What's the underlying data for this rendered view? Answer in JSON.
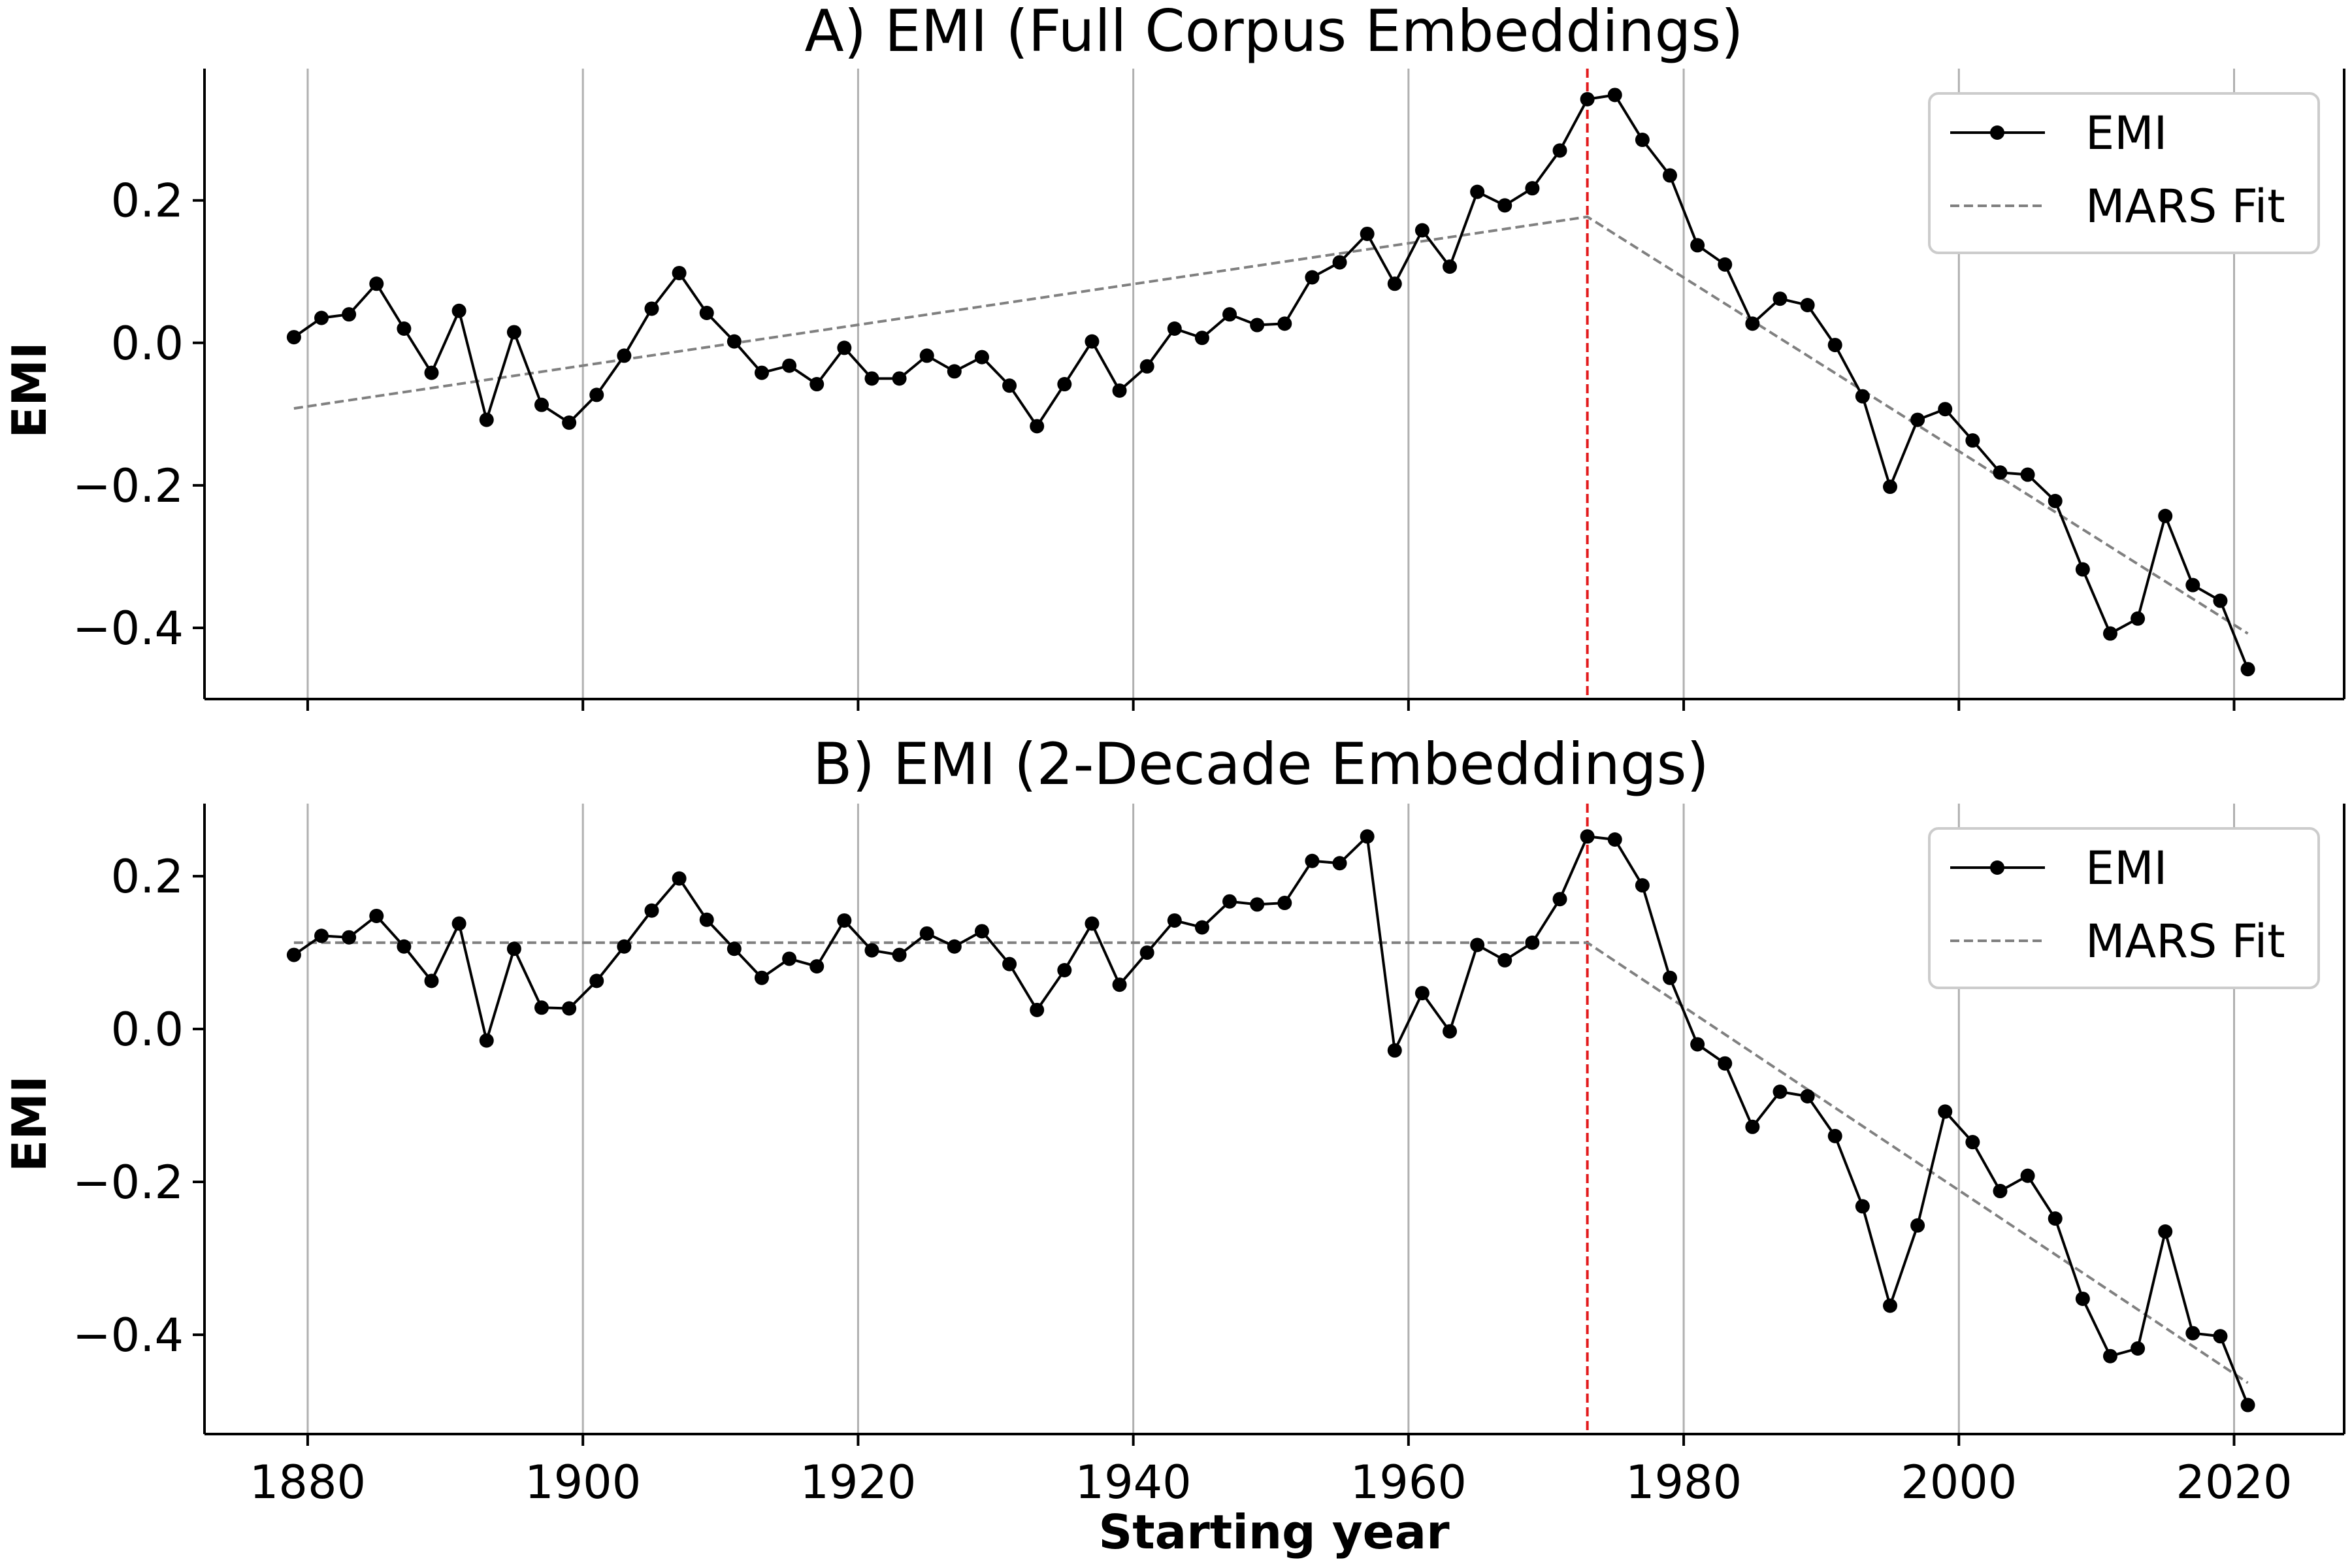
{
  "chart_data": [
    {
      "type": "line",
      "title": "A) EMI (Full Corpus Embeddings)",
      "xlabel": "",
      "ylabel": "EMI",
      "xlim": [
        1872.5,
        2028
      ],
      "ylim": [
        -0.5,
        0.385
      ],
      "xticks": [
        1880,
        1900,
        1920,
        1940,
        1960,
        1980,
        2000,
        2020
      ],
      "yticks": [
        0.2,
        0.0,
        -0.2,
        -0.4
      ],
      "ytick_labels": [
        "0.2",
        "0.0",
        "−0.2",
        "−0.4"
      ],
      "grid": "x-only",
      "breakpoint": 1973,
      "legend": {
        "position": "top-right",
        "entries": [
          "EMI",
          "MARS Fit"
        ]
      },
      "x": [
        1879,
        1881,
        1883,
        1885,
        1887,
        1889,
        1891,
        1893,
        1895,
        1897,
        1899,
        1901,
        1903,
        1905,
        1907,
        1909,
        1911,
        1913,
        1915,
        1917,
        1919,
        1921,
        1923,
        1925,
        1927,
        1929,
        1931,
        1933,
        1935,
        1937,
        1939,
        1941,
        1943,
        1945,
        1947,
        1949,
        1951,
        1953,
        1955,
        1957,
        1959,
        1961,
        1963,
        1965,
        1967,
        1969,
        1971,
        1973,
        1975,
        1977,
        1979,
        1981,
        1983,
        1985,
        1987,
        1989,
        1991,
        1993,
        1995,
        1997,
        1999,
        2001,
        2003,
        2005,
        2007,
        2009,
        2011,
        2013,
        2015,
        2017,
        2019,
        2021
      ],
      "series": [
        {
          "name": "EMI",
          "color": "#000000",
          "values": [
            0.008,
            0.035,
            0.04,
            0.083,
            0.02,
            -0.042,
            0.045,
            -0.108,
            0.015,
            -0.087,
            -0.112,
            -0.073,
            -0.018,
            0.048,
            0.098,
            0.042,
            0.002,
            -0.042,
            -0.032,
            -0.058,
            -0.007,
            -0.05,
            -0.05,
            -0.018,
            -0.04,
            -0.02,
            -0.06,
            -0.117,
            -0.058,
            0.002,
            -0.067,
            -0.033,
            0.02,
            0.007,
            0.04,
            0.025,
            0.027,
            0.092,
            0.113,
            0.153,
            0.083,
            0.158,
            0.107,
            0.212,
            0.193,
            0.217,
            0.27,
            0.342,
            0.348,
            0.285,
            0.235,
            0.137,
            0.11,
            0.027,
            0.062,
            0.053,
            -0.003,
            -0.075,
            -0.202,
            -0.108,
            -0.093,
            -0.137,
            -0.182,
            -0.185,
            -0.222,
            -0.318,
            -0.408,
            -0.387,
            -0.243,
            -0.34,
            -0.362,
            -0.458
          ]
        },
        {
          "name": "MARS Fit",
          "color": "#808080",
          "x": [
            1879,
            1973,
            2021
          ],
          "values": [
            -0.092,
            0.177,
            -0.408
          ]
        }
      ]
    },
    {
      "type": "line",
      "title": "B) EMI (2-Decade Embeddings)",
      "xlabel": "Starting year",
      "ylabel": "EMI",
      "xlim": [
        1872.5,
        2028
      ],
      "ylim": [
        -0.53,
        0.295
      ],
      "xticks": [
        1880,
        1900,
        1920,
        1940,
        1960,
        1980,
        2000,
        2020
      ],
      "yticks": [
        0.2,
        0.0,
        -0.2,
        -0.4
      ],
      "ytick_labels": [
        "0.2",
        "0.0",
        "−0.2",
        "−0.4"
      ],
      "grid": "x-only",
      "breakpoint": 1973,
      "legend": {
        "position": "top-right",
        "entries": [
          "EMI",
          "MARS Fit"
        ]
      },
      "x": [
        1879,
        1881,
        1883,
        1885,
        1887,
        1889,
        1891,
        1893,
        1895,
        1897,
        1899,
        1901,
        1903,
        1905,
        1907,
        1909,
        1911,
        1913,
        1915,
        1917,
        1919,
        1921,
        1923,
        1925,
        1927,
        1929,
        1931,
        1933,
        1935,
        1937,
        1939,
        1941,
        1943,
        1945,
        1947,
        1949,
        1951,
        1953,
        1955,
        1957,
        1959,
        1961,
        1963,
        1965,
        1967,
        1969,
        1971,
        1973,
        1975,
        1977,
        1979,
        1981,
        1983,
        1985,
        1987,
        1989,
        1991,
        1993,
        1995,
        1997,
        1999,
        2001,
        2003,
        2005,
        2007,
        2009,
        2011,
        2013,
        2015,
        2017,
        2019,
        2021
      ],
      "series": [
        {
          "name": "EMI",
          "color": "#000000",
          "values": [
            0.097,
            0.122,
            0.12,
            0.148,
            0.108,
            0.063,
            0.138,
            -0.015,
            0.105,
            0.028,
            0.027,
            0.063,
            0.108,
            0.155,
            0.197,
            0.143,
            0.105,
            0.067,
            0.092,
            0.082,
            0.142,
            0.103,
            0.097,
            0.125,
            0.108,
            0.128,
            0.085,
            0.025,
            0.077,
            0.138,
            0.058,
            0.1,
            0.142,
            0.133,
            0.167,
            0.163,
            0.165,
            0.22,
            0.217,
            0.252,
            -0.028,
            0.047,
            -0.003,
            0.11,
            0.09,
            0.113,
            0.17,
            0.252,
            0.248,
            0.188,
            0.067,
            -0.02,
            -0.045,
            -0.128,
            -0.082,
            -0.088,
            -0.14,
            -0.232,
            -0.362,
            -0.257,
            -0.108,
            -0.148,
            -0.212,
            -0.192,
            -0.248,
            -0.353,
            -0.428,
            -0.418,
            -0.265,
            -0.398,
            -0.402,
            -0.492
          ]
        },
        {
          "name": "MARS Fit",
          "color": "#808080",
          "x": [
            1879,
            1973,
            2021
          ],
          "values": [
            0.113,
            0.113,
            -0.463
          ]
        }
      ]
    }
  ]
}
